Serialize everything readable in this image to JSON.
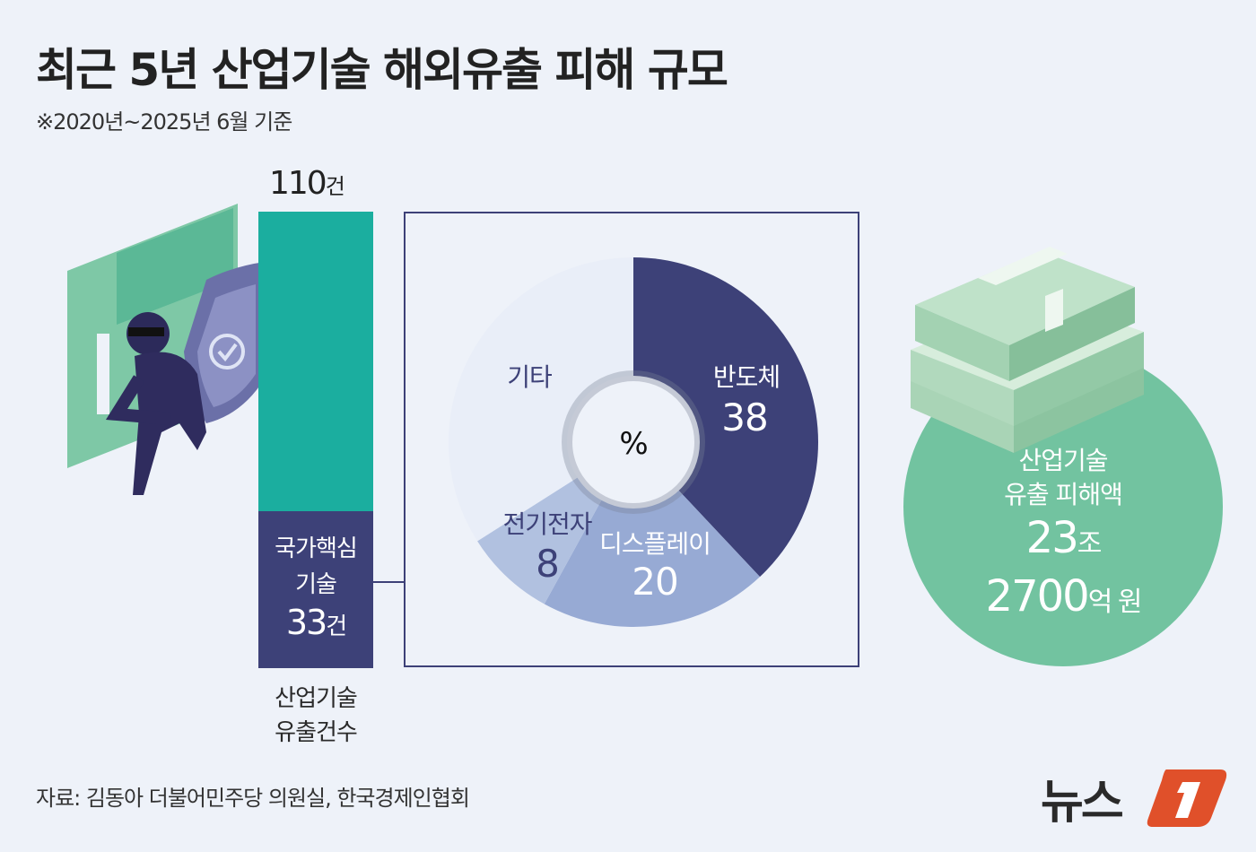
{
  "title": "최근 5년 산업기술 해외유출 피해 규모",
  "subtitle": "※2020년~2025년 6월 기준",
  "bar": {
    "total_value": "110",
    "total_unit": "건",
    "core_label_1": "국가핵심",
    "core_label_2": "기술",
    "core_value": "33",
    "core_unit": "건",
    "caption_1": "산업기술",
    "caption_2": "유출건수",
    "colors": {
      "total": "#1bae9f",
      "core": "#3d4178"
    }
  },
  "chart_data": [
    {
      "type": "bar",
      "categories": [
        "산업기술 유출건수"
      ],
      "series": [
        {
          "name": "국가핵심 기술",
          "values": [
            33
          ]
        }
      ],
      "totals": [
        110
      ]
    },
    {
      "type": "pie",
      "center_label": "%",
      "slices": [
        {
          "label": "반도체",
          "value": 38,
          "value_label": "38",
          "color": "#3d4178"
        },
        {
          "label": "디스플레이",
          "value": 20,
          "value_label": "20",
          "color": "#97aad4"
        },
        {
          "label": "전기전자",
          "value": 8,
          "value_label": "8",
          "color": "#b1c1e0"
        },
        {
          "label": "기타",
          "value": 34,
          "color": "#e9eef8"
        }
      ]
    }
  ],
  "damage": {
    "label_1": "산업기술",
    "label_2": "유출 피해액",
    "value_1": "23",
    "unit_1": "조",
    "value_2": "2700",
    "unit_2": "억 원",
    "color": "#72c3a0"
  },
  "source": "자료: 김동아 더불어민주당 의원실, 한국경제인협회",
  "logo": {
    "text": "뉴스1",
    "accent": "#e0502a"
  }
}
